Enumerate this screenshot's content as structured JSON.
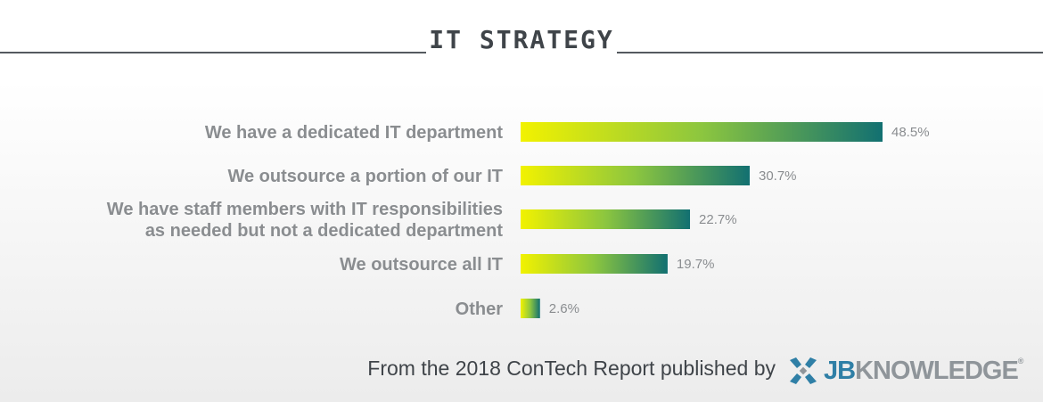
{
  "title": "IT STRATEGY",
  "footer": {
    "text": "From the 2018 ConTech Report published by",
    "brand_part1": "JB",
    "brand_part2": "KNOWLEDGE",
    "brand_mark": "®",
    "brand_icon": "jbknowledge-logo-icon"
  },
  "colors": {
    "bar_start": "#f2f200",
    "bar_mid": "#8cc63f",
    "bar_end": "#127071",
    "label": "#8a8d90",
    "title": "#3f4449",
    "brand_blue": "#2f7fa6",
    "brand_gray": "#8f959a"
  },
  "chart_data": {
    "type": "bar",
    "orientation": "horizontal",
    "categories": [
      [
        "We have a dedicated IT department"
      ],
      [
        "We outsource a portion of our IT"
      ],
      [
        "We have staff members with IT responsibilities",
        "as needed but not a dedicated department"
      ],
      [
        "We outsource all IT"
      ],
      [
        "Other"
      ]
    ],
    "values": [
      48.5,
      30.7,
      22.7,
      19.7,
      2.6
    ],
    "value_labels": [
      "48.5%",
      "30.7%",
      "22.7%",
      "19.7%",
      "2.6%"
    ],
    "unit": "%",
    "xlim": [
      0,
      48.5
    ],
    "grid": false,
    "legend": "none"
  }
}
